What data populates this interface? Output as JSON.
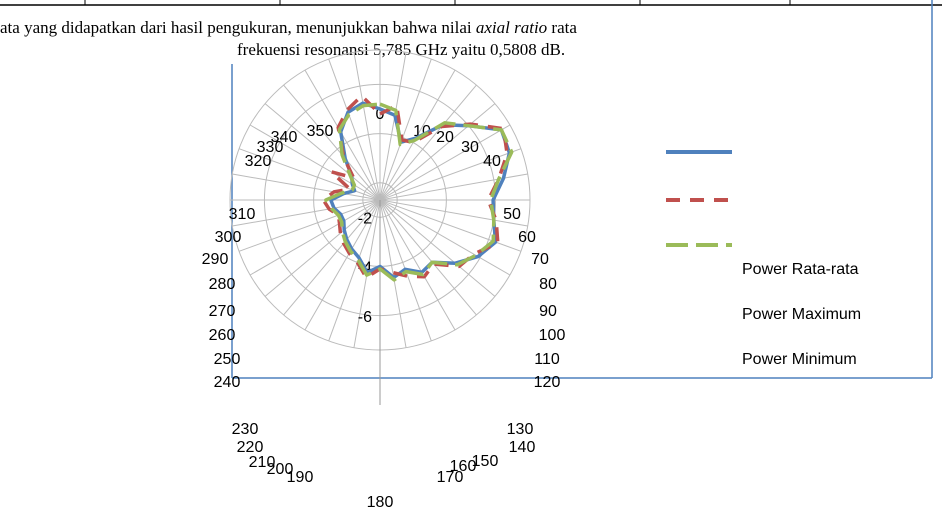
{
  "text": {
    "line1": [
      "ata yang didapatkan dari hasil pengukuran, menunjukkan bahwa nilai ",
      "axial ratio",
      " rata"
    ],
    "line2": "frekuensi resonansi 5,785 GHz yaitu 0,5808 dB."
  },
  "chart_data": {
    "type": "radar",
    "categories": [
      "0",
      "10",
      "20",
      "30",
      "40",
      "50",
      "60",
      "70",
      "80",
      "90",
      "100",
      "110",
      "120",
      "130",
      "140",
      "150",
      "160",
      "170",
      "180",
      "190",
      "200",
      "210",
      "220",
      "230",
      "240",
      "250",
      "260",
      "270",
      "280",
      "290",
      "300",
      "310",
      "320",
      "330",
      "340",
      "350"
    ],
    "rlim": [
      -1.3,
      -7.4
    ],
    "rticks": [
      -2,
      -4,
      -6
    ],
    "grid": true,
    "series": [
      {
        "name": "Power Rata-rata",
        "color": "#4f81bd",
        "dash": "solid",
        "values": [
          -5.0,
          -4.8,
          -3.8,
          -4.2,
          -5.3,
          -6.0,
          -7.0,
          -6.9,
          -6.4,
          -5.9,
          -6.0,
          -6.3,
          -5.9,
          -5.3,
          -4.6,
          -4.7,
          -4.3,
          -4.5,
          -4.0,
          -4.3,
          -3.8,
          -3.6,
          -3.4,
          -3.2,
          -3.0,
          -3.0,
          -3.2,
          -3.3,
          -2.8,
          -2.4,
          -2.6,
          -2.8,
          -3.5,
          -4.5,
          -5.1,
          -5.3
        ]
      },
      {
        "name": "Power Maximum",
        "color": "#c0504d",
        "dash": "dashed",
        "values": [
          -4.8,
          -5.2,
          -3.9,
          -4.0,
          -5.2,
          -6.1,
          -7.1,
          -6.8,
          -6.2,
          -5.7,
          -6.1,
          -6.4,
          -5.7,
          -5.5,
          -4.7,
          -4.9,
          -4.6,
          -4.3,
          -4.1,
          -4.5,
          -4.0,
          -3.8,
          -3.6,
          -3.4,
          -3.2,
          -3.1,
          -3.4,
          -3.6,
          -3.2,
          -2.6,
          -3.6,
          -2.7,
          -3.6,
          -4.7,
          -5.2,
          -5.6
        ]
      },
      {
        "name": "Power Minimum",
        "color": "#9bbb59",
        "dash": "longdash",
        "values": [
          -5.2,
          -5.0,
          -3.7,
          -4.1,
          -5.4,
          -6.0,
          -7.0,
          -7.0,
          -6.2,
          -5.8,
          -6.0,
          -6.2,
          -5.8,
          -5.4,
          -4.6,
          -4.8,
          -4.4,
          -4.6,
          -4.1,
          -4.4,
          -3.9,
          -3.7,
          -3.5,
          -3.3,
          -3.1,
          -3.1,
          -3.3,
          -3.5,
          -2.9,
          -2.5,
          -2.5,
          -2.9,
          -3.7,
          -4.6,
          -5.0,
          -5.2
        ]
      }
    ]
  }
}
